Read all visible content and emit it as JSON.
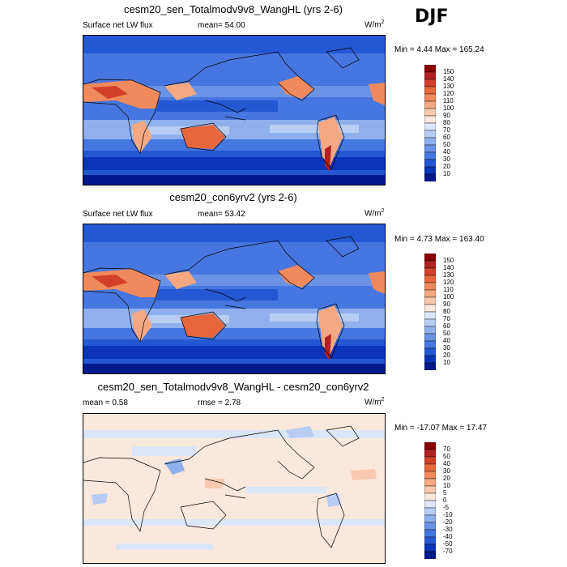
{
  "season": "DJF",
  "panels": [
    {
      "id": "sensitivity",
      "title": "cesm20_sen_Totalmodv9v8_WangHL (yrs 2-6)",
      "left_text": "Surface net LW flux",
      "center_text": "mean=  54.00",
      "units": "W/m",
      "units_sup": "2",
      "minmax": "Min =   4.44 Max = 165.24",
      "colorbar": {
        "labels": [
          "150",
          "140",
          "130",
          "120",
          "110",
          "100",
          "90",
          "80",
          "70",
          "60",
          "50",
          "40",
          "30",
          "20",
          "10"
        ],
        "colors": [
          "#8b0000",
          "#b22222",
          "#d2402a",
          "#e8663c",
          "#f08a5d",
          "#f5a882",
          "#f8c9ae",
          "#fbe8dc",
          "#dbe6f8",
          "#b7cdf3",
          "#8fb0ec",
          "#6a93e6",
          "#4676df",
          "#2458d3",
          "#0b34b8",
          "#001a8c"
        ]
      }
    },
    {
      "id": "control",
      "title": "cesm20_con6yrv2 (yrs 2-6)",
      "left_text": "Surface net LW flux",
      "center_text": "mean=  53.42",
      "units": "W/m",
      "units_sup": "2",
      "minmax": "Min =   4.73 Max = 163.40",
      "colorbar": {
        "labels": [
          "150",
          "140",
          "130",
          "120",
          "110",
          "100",
          "90",
          "80",
          "70",
          "60",
          "50",
          "40",
          "30",
          "20",
          "10"
        ],
        "colors": [
          "#8b0000",
          "#b22222",
          "#d2402a",
          "#e8663c",
          "#f08a5d",
          "#f5a882",
          "#f8c9ae",
          "#fbe8dc",
          "#dbe6f8",
          "#b7cdf3",
          "#8fb0ec",
          "#6a93e6",
          "#4676df",
          "#2458d3",
          "#0b34b8",
          "#001a8c"
        ]
      }
    },
    {
      "id": "difference",
      "title": "cesm20_sen_Totalmodv9v8_WangHL - cesm20_con6yrv2",
      "left_text": "mean =   0.58",
      "center_text": "rmse =   2.78",
      "units": "W/m",
      "units_sup": "2",
      "minmax": "Min = -17.07 Max =  17.47",
      "colorbar": {
        "labels": [
          "70",
          "50",
          "40",
          "30",
          "20",
          "10",
          "5",
          "0",
          "-5",
          "-10",
          "-20",
          "-30",
          "-40",
          "-50",
          "-70"
        ],
        "colors": [
          "#8b0000",
          "#b22222",
          "#d2402a",
          "#e8663c",
          "#f08a5d",
          "#f5a882",
          "#f8c9ae",
          "#fbe8dc",
          "#dbe6f8",
          "#b7cdf3",
          "#8fb0ec",
          "#6a93e6",
          "#4676df",
          "#2458d3",
          "#0b34b8",
          "#001a8c"
        ]
      }
    }
  ],
  "chart_data": [
    {
      "type": "heatmap",
      "title": "cesm20_sen_Totalmodv9v8_WangHL (yrs 2-6)",
      "variable": "Surface net LW flux",
      "season": "DJF",
      "mean": 54.0,
      "min": 4.44,
      "max": 165.24,
      "units": "W/m2",
      "contour_levels": [
        10,
        20,
        30,
        40,
        50,
        60,
        70,
        80,
        90,
        100,
        110,
        120,
        130,
        140,
        150
      ]
    },
    {
      "type": "heatmap",
      "title": "cesm20_con6yrv2 (yrs 2-6)",
      "variable": "Surface net LW flux",
      "season": "DJF",
      "mean": 53.42,
      "min": 4.73,
      "max": 163.4,
      "units": "W/m2",
      "contour_levels": [
        10,
        20,
        30,
        40,
        50,
        60,
        70,
        80,
        90,
        100,
        110,
        120,
        130,
        140,
        150
      ]
    },
    {
      "type": "heatmap",
      "title": "cesm20_sen_Totalmodv9v8_WangHL - cesm20_con6yrv2",
      "season": "DJF",
      "mean": 0.58,
      "rmse": 2.78,
      "min": -17.07,
      "max": 17.47,
      "units": "W/m2",
      "contour_levels": [
        -70,
        -50,
        -40,
        -30,
        -20,
        -10,
        -5,
        0,
        5,
        10,
        20,
        30,
        40,
        50,
        70
      ]
    }
  ]
}
